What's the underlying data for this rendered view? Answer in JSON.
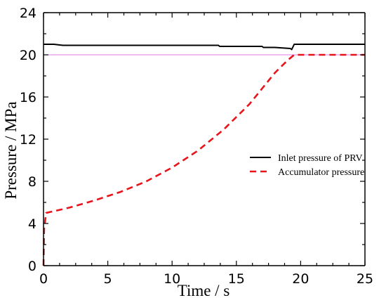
{
  "chart_data": {
    "type": "line",
    "xlabel": "Time / s",
    "ylabel": "Pressure  / MPa",
    "xlim": [
      0,
      25
    ],
    "ylim": [
      0,
      24
    ],
    "xticks": [
      0,
      5,
      10,
      15,
      20,
      25
    ],
    "yticks": [
      0,
      4,
      8,
      12,
      16,
      20,
      24
    ],
    "x_tick_labels": [
      "0",
      "5",
      "10",
      "15",
      "20",
      "25"
    ],
    "y_tick_labels": [
      "0",
      "4",
      "8",
      "12",
      "16",
      "20",
      "24"
    ],
    "grid": false,
    "legend_position": "right",
    "series": [
      {
        "name": "Inlet pressure of PRV",
        "color": "#000000",
        "style": "solid",
        "x": [
          0,
          0.8,
          1.5,
          1.6,
          13.6,
          13.7,
          17.0,
          17.1,
          18.0,
          19.2,
          19.3,
          19.5,
          19.6,
          25
        ],
        "y": [
          21.0,
          21.0,
          20.9,
          20.9,
          20.9,
          20.8,
          20.8,
          20.7,
          20.7,
          20.6,
          20.5,
          21.0,
          21.0,
          21.0
        ]
      },
      {
        "name": "Accumulator pressure",
        "color": "#e8141b",
        "style": "dashed",
        "x": [
          0,
          0.05,
          0.2,
          2,
          4,
          6,
          8,
          10,
          12,
          14,
          16,
          18,
          19,
          19.5,
          25
        ],
        "y": [
          0,
          3.5,
          5.0,
          5.5,
          6.2,
          7.0,
          8.0,
          9.3,
          10.9,
          12.9,
          15.3,
          18.3,
          19.5,
          20.0,
          20.0
        ]
      },
      {
        "name": "",
        "color": "#e07be0",
        "style": "solid",
        "x": [
          0,
          25
        ],
        "y": [
          20,
          20
        ]
      }
    ]
  }
}
